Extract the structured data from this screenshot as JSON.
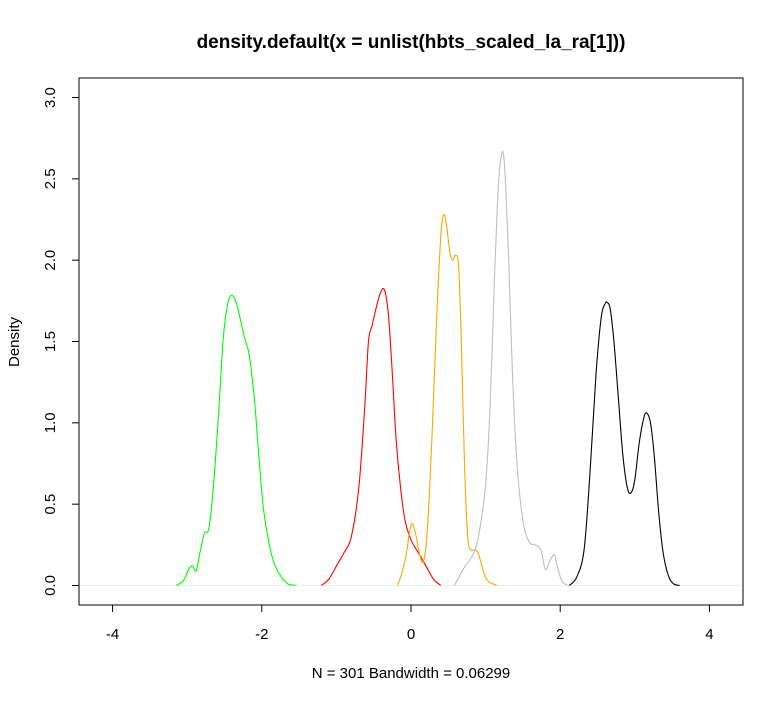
{
  "chart_data": {
    "type": "line",
    "title": "density.default(x = unlist(hbts_scaled_la_ra[1]))",
    "xlabel": "N = 301   Bandwidth = 0.06299",
    "ylabel": "Density",
    "xlim": [
      -4.45,
      4.45
    ],
    "ylim": [
      -0.12,
      3.12
    ],
    "x_ticks": [
      -4,
      -2,
      0,
      2,
      4
    ],
    "x_tick_labels": [
      "-4",
      "-2",
      "0",
      "2",
      "4"
    ],
    "y_ticks": [
      0.0,
      0.5,
      1.0,
      1.5,
      2.0,
      2.5,
      3.0
    ],
    "y_tick_labels": [
      "0.0",
      "0.5",
      "1.0",
      "1.5",
      "2.0",
      "2.5",
      "3.0"
    ],
    "grid": false,
    "baseline_color": "#eeeeee",
    "series": [
      {
        "color": "#00ff00",
        "x": [
          -3.15,
          -3.05,
          -2.98,
          -2.93,
          -2.88,
          -2.83,
          -2.77,
          -2.71,
          -2.65,
          -2.58,
          -2.52,
          -2.47,
          -2.42,
          -2.37,
          -2.33,
          -2.28,
          -2.23,
          -2.17,
          -2.1,
          -2.04,
          -1.98,
          -1.9,
          -1.82,
          -1.72,
          -1.65,
          -1.55
        ],
        "y": [
          0.0,
          0.03,
          0.1,
          0.12,
          0.09,
          0.2,
          0.32,
          0.35,
          0.6,
          1.05,
          1.5,
          1.7,
          1.78,
          1.77,
          1.72,
          1.62,
          1.52,
          1.42,
          1.15,
          0.8,
          0.48,
          0.25,
          0.12,
          0.04,
          0.01,
          0.0
        ]
      },
      {
        "color": "#ff0000",
        "x": [
          -1.2,
          -1.1,
          -1.0,
          -0.9,
          -0.8,
          -0.7,
          -0.62,
          -0.57,
          -0.52,
          -0.46,
          -0.4,
          -0.35,
          -0.3,
          -0.25,
          -0.2,
          -0.14,
          -0.08,
          0.0,
          0.1,
          0.2,
          0.3,
          0.4
        ],
        "y": [
          0.0,
          0.04,
          0.12,
          0.2,
          0.3,
          0.6,
          1.1,
          1.5,
          1.6,
          1.72,
          1.81,
          1.81,
          1.65,
          1.3,
          0.9,
          0.6,
          0.4,
          0.28,
          0.2,
          0.12,
          0.04,
          0.0
        ]
      },
      {
        "color": "#ffa500",
        "x": [
          -0.18,
          -0.12,
          -0.06,
          -0.02,
          0.02,
          0.07,
          0.12,
          0.17,
          0.22,
          0.28,
          0.34,
          0.4,
          0.44,
          0.48,
          0.52,
          0.56,
          0.6,
          0.64,
          0.68,
          0.72,
          0.76,
          0.8,
          0.85,
          0.9,
          0.95,
          1.0,
          1.05,
          1.1,
          1.15
        ],
        "y": [
          0.0,
          0.08,
          0.2,
          0.33,
          0.38,
          0.3,
          0.18,
          0.15,
          0.35,
          0.9,
          1.6,
          2.15,
          2.28,
          2.2,
          2.05,
          2.0,
          2.03,
          1.95,
          1.4,
          0.7,
          0.3,
          0.22,
          0.22,
          0.2,
          0.12,
          0.05,
          0.02,
          0.01,
          0.0
        ]
      },
      {
        "color": "#bebebe",
        "x": [
          0.58,
          0.64,
          0.7,
          0.76,
          0.82,
          0.88,
          0.94,
          1.0,
          1.06,
          1.12,
          1.17,
          1.21,
          1.24,
          1.27,
          1.31,
          1.36,
          1.42,
          1.5,
          1.58,
          1.66,
          1.74,
          1.8,
          1.86,
          1.92,
          1.96,
          2.02,
          2.1
        ],
        "y": [
          0.0,
          0.05,
          0.1,
          0.14,
          0.18,
          0.25,
          0.4,
          0.62,
          1.1,
          1.9,
          2.45,
          2.64,
          2.65,
          2.45,
          2.0,
          1.3,
          0.75,
          0.4,
          0.27,
          0.25,
          0.22,
          0.1,
          0.15,
          0.19,
          0.12,
          0.03,
          0.0
        ]
      },
      {
        "color": "#000000",
        "x": [
          2.12,
          2.22,
          2.32,
          2.4,
          2.48,
          2.55,
          2.6,
          2.63,
          2.67,
          2.72,
          2.78,
          2.84,
          2.9,
          2.95,
          3.0,
          3.06,
          3.12,
          3.16,
          3.21,
          3.26,
          3.32,
          3.38,
          3.45,
          3.52,
          3.6
        ],
        "y": [
          0.0,
          0.05,
          0.22,
          0.7,
          1.3,
          1.65,
          1.73,
          1.74,
          1.7,
          1.5,
          1.15,
          0.8,
          0.6,
          0.57,
          0.65,
          0.88,
          1.03,
          1.06,
          1.0,
          0.8,
          0.45,
          0.2,
          0.06,
          0.01,
          0.0
        ]
      }
    ]
  }
}
